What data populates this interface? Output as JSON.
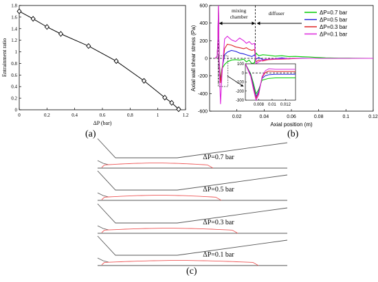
{
  "panel_labels": [
    "(a)",
    "(b)",
    "(c)"
  ],
  "chart_data": [
    {
      "type": "line",
      "xlabel": "ΔP (bar)",
      "ylabel": "Entrainment ratio",
      "xlim": [
        0,
        1.2
      ],
      "ylim": [
        0,
        1.8
      ],
      "xticks": [
        0,
        0.2,
        0.4,
        0.6,
        0.8,
        1,
        1.2
      ],
      "yticks": [
        0,
        0.2,
        0.4,
        0.6,
        0.8,
        1,
        1.2,
        1.4,
        1.6,
        1.8
      ],
      "xtick_labels": [
        "0",
        "0.2",
        "0.4",
        "0.6",
        "0.8",
        "1",
        "1.2"
      ],
      "ytick_labels": [
        "0",
        "0.2",
        "0.4",
        "0.6",
        "0.8",
        "1",
        "1.2",
        "1.4",
        "1.6",
        "1.8"
      ],
      "marker": "diamond",
      "grid": false,
      "x": [
        0,
        0.1,
        0.2,
        0.3,
        0.5,
        0.7,
        0.9,
        1.05,
        1.1,
        1.15
      ],
      "y": [
        1.7,
        1.57,
        1.43,
        1.31,
        1.1,
        0.84,
        0.5,
        0.21,
        0.12,
        0.01
      ]
    },
    {
      "type": "line",
      "xlabel": "Axial position (m)",
      "ylabel": "Axial wall shear stress (Pa)",
      "xlim": [
        0,
        0.12
      ],
      "ylim": [
        -600,
        600
      ],
      "xticks": [
        0.02,
        0.04,
        0.06,
        0.08,
        0.1,
        0.12
      ],
      "xtick_labels": [
        "0.02",
        "0.04",
        "0.06",
        "0.08",
        "0.1",
        "0.12"
      ],
      "yticks": [
        -600,
        -400,
        -200,
        0,
        200,
        400,
        600
      ],
      "ytick_labels": [
        "-600",
        "-400",
        "-200",
        "0",
        "200",
        "400",
        "600"
      ],
      "legend_position": "top-right",
      "annotations": [
        "mixing chamber",
        "diffuser"
      ],
      "series": [
        {
          "name": "ΔP=0.7 bar",
          "color": "#00cc00",
          "x": [
            0.004,
            0.0055,
            0.006,
            0.0065,
            0.007,
            0.008,
            0.009,
            0.011,
            0.013,
            0.016,
            0.019,
            0.022,
            0.025,
            0.027,
            0.029,
            0.031,
            0.033,
            0.034,
            0.036,
            0.039,
            0.043,
            0.048,
            0.053,
            0.058,
            0.063,
            0.068,
            0.073,
            0.078,
            0.085,
            0.095,
            0.105,
            0.12
          ],
          "y": [
            0,
            20,
            120,
            560,
            -20,
            -250,
            -120,
            -70,
            -40,
            -20,
            -15,
            -20,
            -10,
            -40,
            -20,
            -60,
            -50,
            60,
            30,
            40,
            35,
            25,
            30,
            20,
            22,
            18,
            15,
            10,
            5,
            3,
            2,
            0
          ]
        },
        {
          "name": "ΔP=0.5 bar",
          "color": "#2222dd",
          "x": [
            0.004,
            0.0055,
            0.006,
            0.0065,
            0.007,
            0.008,
            0.009,
            0.011,
            0.013,
            0.016,
            0.019,
            0.022,
            0.025,
            0.027,
            0.029,
            0.031,
            0.033,
            0.034,
            0.036,
            0.039,
            0.043,
            0.048,
            0.053,
            0.058,
            0.063,
            0.068,
            0.073,
            0.078,
            0.085,
            0.095,
            0.105,
            0.12
          ],
          "y": [
            0,
            20,
            150,
            580,
            -40,
            -270,
            -130,
            40,
            70,
            90,
            80,
            60,
            50,
            40,
            30,
            20,
            40,
            -10,
            10,
            -15,
            -10,
            -5,
            5,
            -5,
            0,
            2,
            0,
            0,
            0,
            0,
            0,
            0
          ]
        },
        {
          "name": "ΔP=0.3 bar",
          "color": "#dd2222",
          "x": [
            0.004,
            0.0055,
            0.006,
            0.0065,
            0.007,
            0.008,
            0.009,
            0.011,
            0.013,
            0.016,
            0.019,
            0.022,
            0.025,
            0.027,
            0.029,
            0.031,
            0.033,
            0.034,
            0.036,
            0.039,
            0.043,
            0.048,
            0.053,
            0.058,
            0.063,
            0.068,
            0.073,
            0.078,
            0.085,
            0.095,
            0.105,
            0.12
          ],
          "y": [
            0,
            20,
            160,
            590,
            -50,
            -280,
            -140,
            110,
            160,
            150,
            130,
            120,
            110,
            120,
            100,
            90,
            100,
            -40,
            -20,
            -30,
            -15,
            -10,
            -8,
            -5,
            -3,
            0,
            0,
            0,
            0,
            0,
            0,
            0
          ]
        },
        {
          "name": "ΔP=0.1 bar",
          "color": "#dd22dd",
          "x": [
            0.004,
            0.0055,
            0.006,
            0.0065,
            0.007,
            0.008,
            0.009,
            0.011,
            0.013,
            0.016,
            0.019,
            0.022,
            0.025,
            0.027,
            0.029,
            0.031,
            0.033,
            0.034,
            0.036,
            0.039,
            0.043,
            0.048,
            0.053,
            0.058,
            0.063,
            0.068,
            0.073,
            0.078,
            0.085,
            0.095,
            0.105,
            0.12
          ],
          "y": [
            0,
            20,
            170,
            600,
            -60,
            -520,
            -200,
            220,
            250,
            210,
            190,
            230,
            200,
            170,
            190,
            160,
            170,
            -60,
            -40,
            -20,
            -10,
            -6,
            -4,
            -2,
            0,
            0,
            0,
            0,
            0,
            0,
            0,
            0
          ]
        }
      ]
    },
    {
      "type": "line",
      "inset": true,
      "xlim": [
        0.006,
        0.0135
      ],
      "ylim": [
        -300,
        100
      ],
      "xticks": [
        0.008,
        0.01,
        0.012
      ],
      "xtick_labels": [
        "0.008",
        "0.01",
        "0.012"
      ],
      "yticks": [
        -300,
        -200,
        -100,
        0,
        100
      ],
      "ytick_labels": [
        "-300",
        "-200",
        "-100",
        "0",
        "100"
      ],
      "series": [
        {
          "name": "ΔP=0.7 bar",
          "color": "#00cc00",
          "x": [
            0.006,
            0.0068,
            0.0072,
            0.0076,
            0.008,
            0.0085,
            0.009,
            0.0095,
            0.0105,
            0.0135
          ],
          "y": [
            100,
            -10,
            -110,
            -230,
            -180,
            -80,
            -70,
            -60,
            -55,
            -55
          ]
        },
        {
          "name": "ΔP=0.5 bar",
          "color": "#2222dd",
          "x": [
            0.006,
            0.0068,
            0.0072,
            0.0076,
            0.008,
            0.0085,
            0.009,
            0.0095,
            0.0105,
            0.0135
          ],
          "y": [
            100,
            -20,
            -140,
            -260,
            -200,
            -60,
            -30,
            -20,
            -15,
            -15
          ]
        },
        {
          "name": "ΔP=0.3 bar",
          "color": "#dd2222",
          "x": [
            0.006,
            0.0068,
            0.0072,
            0.0076,
            0.008,
            0.0085,
            0.009,
            0.0095,
            0.0105,
            0.0135
          ],
          "y": [
            100,
            -30,
            -160,
            -280,
            -220,
            -50,
            5,
            20,
            15,
            15
          ]
        },
        {
          "name": "ΔP=0.1 bar",
          "color": "#dd22dd",
          "x": [
            0.006,
            0.0068,
            0.0072,
            0.0076,
            0.008,
            0.0085,
            0.009,
            0.0095,
            0.0105,
            0.0135
          ],
          "y": [
            100,
            -40,
            -180,
            -300,
            -240,
            -40,
            25,
            45,
            40,
            40
          ]
        }
      ]
    }
  ],
  "geometry_panel": {
    "labels": [
      "ΔP=0.7 bar",
      "ΔP=0.5 bar",
      "ΔP=0.3 bar",
      "ΔP=0.1 bar"
    ],
    "wall_color": "#555555",
    "jet_color": "#ee5555"
  }
}
